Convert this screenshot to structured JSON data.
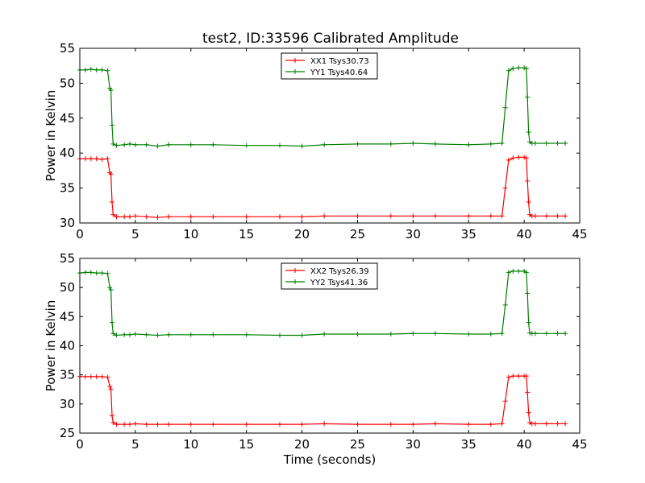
{
  "title": "test2, ID:33596 Calibrated Amplitude",
  "chart_data": [
    {
      "type": "line",
      "xlim": [
        0,
        45
      ],
      "ylim": [
        30,
        55
      ],
      "xticks": [
        0,
        5,
        10,
        15,
        20,
        25,
        30,
        35,
        40,
        45
      ],
      "yticks": [
        30,
        35,
        40,
        45,
        50,
        55
      ],
      "ylabel": "Power in Kelvin",
      "xlabel": "",
      "legend_position": "top-center",
      "series": [
        {
          "name": "XX1 Tsys30.73",
          "color": "#ff0000",
          "x": [
            0,
            0.5,
            1,
            1.5,
            2,
            2.5,
            2.7,
            2.8,
            2.9,
            3.0,
            3.3,
            4,
            4.5,
            5,
            6,
            7,
            8,
            10,
            12,
            15,
            18,
            20,
            22,
            25,
            28,
            30,
            32,
            35,
            37,
            38.0,
            38.3,
            38.6,
            39,
            39.5,
            40,
            40.2,
            40.3,
            40.4,
            40.5,
            40.7,
            41,
            42,
            43,
            43.7
          ],
          "y": [
            39.2,
            39.2,
            39.2,
            39.2,
            39.1,
            39.2,
            37.2,
            37.0,
            33.0,
            31.2,
            30.9,
            30.9,
            30.9,
            31.0,
            30.9,
            30.8,
            30.9,
            30.9,
            30.9,
            30.9,
            30.9,
            30.9,
            31.0,
            31.0,
            31.0,
            31.0,
            31.0,
            31.0,
            31.0,
            31.0,
            35.0,
            39.0,
            39.3,
            39.4,
            39.4,
            39.3,
            36.0,
            33.0,
            31.2,
            31.0,
            31.0,
            31.0,
            31.0,
            31.0
          ]
        },
        {
          "name": "YY1 Tsys40.64",
          "color": "#008000",
          "x": [
            0,
            0.5,
            1,
            1.5,
            2,
            2.5,
            2.7,
            2.8,
            2.9,
            3.0,
            3.3,
            4,
            4.5,
            5,
            6,
            7,
            8,
            10,
            12,
            15,
            18,
            20,
            22,
            25,
            28,
            30,
            32,
            35,
            37,
            38.0,
            38.3,
            38.6,
            39,
            39.5,
            40,
            40.2,
            40.3,
            40.4,
            40.5,
            40.7,
            41,
            42,
            43,
            43.7
          ],
          "y": [
            51.9,
            51.9,
            52.0,
            51.9,
            51.9,
            51.8,
            49.3,
            49.0,
            44.0,
            41.3,
            41.1,
            41.2,
            41.3,
            41.2,
            41.2,
            41.0,
            41.2,
            41.2,
            41.2,
            41.1,
            41.1,
            41.0,
            41.2,
            41.3,
            41.3,
            41.4,
            41.3,
            41.2,
            41.3,
            41.4,
            46.5,
            51.8,
            52.1,
            52.2,
            52.2,
            52.1,
            48.0,
            43.0,
            41.6,
            41.4,
            41.4,
            41.4,
            41.4,
            41.4
          ]
        }
      ]
    },
    {
      "type": "line",
      "xlim": [
        0,
        45
      ],
      "ylim": [
        25,
        55
      ],
      "xticks": [
        0,
        5,
        10,
        15,
        20,
        25,
        30,
        35,
        40,
        45
      ],
      "yticks": [
        25,
        30,
        35,
        40,
        45,
        50,
        55
      ],
      "ylabel": "Power in Kelvin",
      "xlabel": "Time (seconds)",
      "legend_position": "top-center",
      "series": [
        {
          "name": "XX2 Tsys26.39",
          "color": "#ff0000",
          "x": [
            0,
            0.5,
            1,
            1.5,
            2,
            2.5,
            2.7,
            2.8,
            2.9,
            3.0,
            3.3,
            4,
            4.5,
            5,
            6,
            7,
            8,
            10,
            12,
            15,
            18,
            20,
            22,
            25,
            28,
            30,
            32,
            35,
            37,
            38.0,
            38.3,
            38.6,
            39,
            39.5,
            40,
            40.2,
            40.3,
            40.4,
            40.5,
            40.7,
            41,
            42,
            43,
            43.7
          ],
          "y": [
            34.7,
            34.7,
            34.7,
            34.7,
            34.7,
            34.6,
            33.0,
            32.5,
            28.0,
            26.8,
            26.5,
            26.5,
            26.5,
            26.6,
            26.5,
            26.5,
            26.5,
            26.5,
            26.5,
            26.5,
            26.5,
            26.5,
            26.6,
            26.5,
            26.5,
            26.5,
            26.6,
            26.5,
            26.5,
            26.6,
            30.5,
            34.6,
            34.8,
            34.8,
            34.8,
            34.8,
            32.0,
            28.5,
            26.8,
            26.6,
            26.6,
            26.6,
            26.6,
            26.6
          ]
        },
        {
          "name": "YY2 Tsys41.36",
          "color": "#008000",
          "x": [
            0,
            0.5,
            1,
            1.5,
            2,
            2.5,
            2.7,
            2.8,
            2.9,
            3.0,
            3.3,
            4,
            4.5,
            5,
            6,
            7,
            8,
            10,
            12,
            15,
            18,
            20,
            22,
            25,
            28,
            30,
            32,
            35,
            37,
            38.0,
            38.3,
            38.6,
            39,
            39.5,
            40,
            40.2,
            40.3,
            40.4,
            40.5,
            40.7,
            41,
            42,
            43,
            43.7
          ],
          "y": [
            52.5,
            52.6,
            52.6,
            52.5,
            52.5,
            52.4,
            50.0,
            49.6,
            44.0,
            42.1,
            41.8,
            41.9,
            41.9,
            42.0,
            41.9,
            41.8,
            41.9,
            41.9,
            41.9,
            41.9,
            41.8,
            41.8,
            42.0,
            42.0,
            42.0,
            42.1,
            42.1,
            42.0,
            42.0,
            42.1,
            47.0,
            52.6,
            52.8,
            52.8,
            52.8,
            52.6,
            49.0,
            44.0,
            42.2,
            42.1,
            42.1,
            42.1,
            42.1,
            42.1
          ]
        }
      ]
    }
  ]
}
